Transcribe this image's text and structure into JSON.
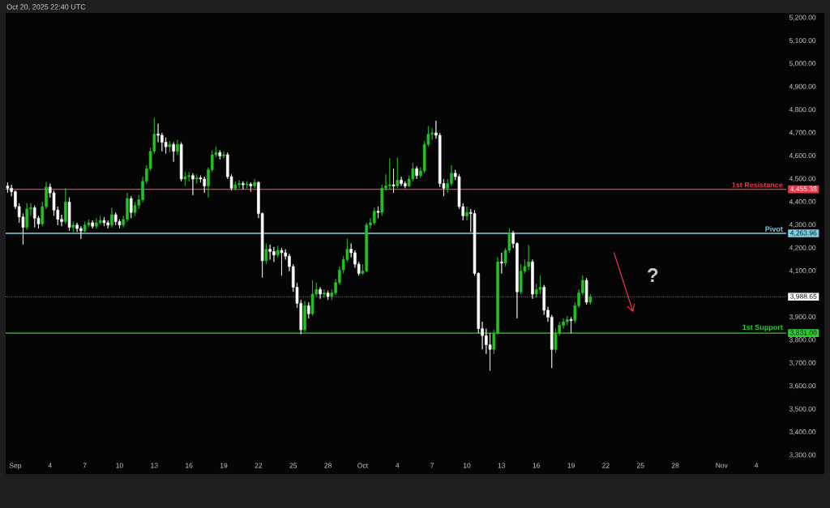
{
  "chart_data": {
    "type": "candlestick",
    "annotations": [
      "Oct 20, 2025 22:40 UTC",
      "?",
      {
        "text": "4,455.38",
        "x": "2025-11-06T14:00",
        "y": 4455.38
      },
      {
        "text": "4,263.96",
        "x": "2025-11-06T14:00",
        "y": 4263.96
      },
      {
        "text": "3,988.65",
        "x": "2025-11-06T14:00",
        "y": 3988.65
      },
      {
        "text": "3,831.00",
        "x": "2025-11-06T14:00",
        "y": 3831.0
      }
    ],
    "x": [
      "2025-08-31T08:00",
      "2025-08-31T16:00",
      "2025-09-01T00:00",
      "2025-09-01T08:00",
      "2025-09-01T16:00",
      "2025-09-02T00:00",
      "2025-09-02T08:00",
      "2025-09-02T16:00",
      "2025-09-03T00:00",
      "2025-09-03T08:00",
      "2025-09-03T16:00",
      "2025-09-04T00:00",
      "2025-09-04T08:00",
      "2025-09-04T16:00",
      "2025-09-05T00:00",
      "2025-09-05T08:00",
      "2025-09-05T16:00",
      "2025-09-06T00:00",
      "2025-09-06T08:00",
      "2025-09-06T16:00",
      "2025-09-07T00:00",
      "2025-09-07T08:00",
      "2025-09-07T16:00",
      "2025-09-08T00:00",
      "2025-09-08T08:00",
      "2025-09-08T16:00",
      "2025-09-09T00:00",
      "2025-09-09T08:00",
      "2025-09-09T16:00",
      "2025-09-10T00:00",
      "2025-09-10T08:00",
      "2025-09-10T16:00",
      "2025-09-11T00:00",
      "2025-09-11T08:00",
      "2025-09-11T16:00",
      "2025-09-12T00:00",
      "2025-09-12T08:00",
      "2025-09-12T16:00",
      "2025-09-13T00:00",
      "2025-09-13T08:00",
      "2025-09-13T16:00",
      "2025-09-14T00:00",
      "2025-09-14T08:00",
      "2025-09-14T16:00",
      "2025-09-15T00:00",
      "2025-09-15T08:00",
      "2025-09-15T16:00",
      "2025-09-16T00:00",
      "2025-09-16T08:00",
      "2025-09-16T16:00",
      "2025-09-17T00:00",
      "2025-09-17T08:00",
      "2025-09-17T16:00",
      "2025-09-18T00:00",
      "2025-09-18T08:00",
      "2025-09-18T16:00",
      "2025-09-19T00:00",
      "2025-09-19T08:00",
      "2025-09-19T16:00",
      "2025-09-20T00:00",
      "2025-09-20T08:00",
      "2025-09-20T16:00",
      "2025-09-21T00:00",
      "2025-09-21T08:00",
      "2025-09-21T16:00",
      "2025-09-22T00:00",
      "2025-09-22T08:00",
      "2025-09-22T16:00",
      "2025-09-23T00:00",
      "2025-09-23T08:00",
      "2025-09-23T16:00",
      "2025-09-24T00:00",
      "2025-09-24T08:00",
      "2025-09-24T16:00",
      "2025-09-25T00:00",
      "2025-09-25T08:00",
      "2025-09-25T16:00",
      "2025-09-26T00:00",
      "2025-09-26T08:00",
      "2025-09-26T16:00",
      "2025-09-27T00:00",
      "2025-09-27T08:00",
      "2025-09-27T16:00",
      "2025-09-28T00:00",
      "2025-09-28T08:00",
      "2025-09-28T16:00",
      "2025-09-29T00:00",
      "2025-09-29T08:00",
      "2025-09-29T16:00",
      "2025-09-30T00:00",
      "2025-09-30T08:00",
      "2025-09-30T16:00",
      "2025-10-01T00:00",
      "2025-10-01T08:00",
      "2025-10-01T16:00",
      "2025-10-02T00:00",
      "2025-10-02T08:00",
      "2025-10-02T16:00",
      "2025-10-03T00:00",
      "2025-10-03T08:00",
      "2025-10-03T16:00",
      "2025-10-04T00:00",
      "2025-10-04T08:00",
      "2025-10-04T16:00",
      "2025-10-05T00:00",
      "2025-10-05T08:00",
      "2025-10-05T16:00",
      "2025-10-06T00:00",
      "2025-10-06T08:00",
      "2025-10-06T16:00",
      "2025-10-07T00:00",
      "2025-10-07T08:00",
      "2025-10-07T16:00",
      "2025-10-08T00:00",
      "2025-10-08T08:00",
      "2025-10-08T16:00",
      "2025-10-09T00:00",
      "2025-10-09T08:00",
      "2025-10-09T16:00",
      "2025-10-10T00:00",
      "2025-10-10T08:00",
      "2025-10-10T16:00",
      "2025-10-11T00:00",
      "2025-10-11T08:00",
      "2025-10-11T16:00",
      "2025-10-12T00:00",
      "2025-10-12T08:00",
      "2025-10-12T16:00",
      "2025-10-13T00:00",
      "2025-10-13T08:00",
      "2025-10-13T16:00",
      "2025-10-14T00:00",
      "2025-10-14T08:00",
      "2025-10-14T16:00",
      "2025-10-15T00:00",
      "2025-10-15T08:00",
      "2025-10-15T16:00",
      "2025-10-16T00:00",
      "2025-10-16T08:00",
      "2025-10-16T16:00",
      "2025-10-17T00:00",
      "2025-10-17T08:00",
      "2025-10-17T16:00",
      "2025-10-18T00:00",
      "2025-10-18T08:00",
      "2025-10-18T16:00",
      "2025-10-19T00:00",
      "2025-10-19T08:00",
      "2025-10-19T16:00",
      "2025-10-20T00:00",
      "2025-10-20T08:00",
      "2025-10-20T16:00"
    ],
    "ohlc": [
      [
        4470,
        4485,
        4440,
        4460
      ],
      [
        4460,
        4475,
        4425,
        4445
      ],
      [
        4445,
        4450,
        4370,
        4380
      ],
      [
        4380,
        4395,
        4310,
        4335
      ],
      [
        4335,
        4350,
        4215,
        4290
      ],
      [
        4290,
        4395,
        4280,
        4370
      ],
      [
        4370,
        4395,
        4340,
        4375
      ],
      [
        4375,
        4385,
        4290,
        4330
      ],
      [
        4330,
        4340,
        4285,
        4305
      ],
      [
        4305,
        4400,
        4295,
        4380
      ],
      [
        4380,
        4487,
        4370,
        4465
      ],
      [
        4465,
        4480,
        4420,
        4440
      ],
      [
        4440,
        4450,
        4340,
        4365
      ],
      [
        4365,
        4380,
        4300,
        4325
      ],
      [
        4325,
        4345,
        4295,
        4315
      ],
      [
        4315,
        4460,
        4305,
        4400
      ],
      [
        4400,
        4420,
        4275,
        4290
      ],
      [
        4290,
        4315,
        4270,
        4300
      ],
      [
        4300,
        4310,
        4270,
        4285
      ],
      [
        4285,
        4295,
        4240,
        4275
      ],
      [
        4275,
        4315,
        4265,
        4300
      ],
      [
        4300,
        4325,
        4290,
        4310
      ],
      [
        4310,
        4320,
        4285,
        4295
      ],
      [
        4295,
        4330,
        4285,
        4310
      ],
      [
        4310,
        4340,
        4300,
        4320
      ],
      [
        4320,
        4335,
        4295,
        4310
      ],
      [
        4310,
        4320,
        4285,
        4300
      ],
      [
        4300,
        4375,
        4290,
        4345
      ],
      [
        4345,
        4355,
        4300,
        4315
      ],
      [
        4315,
        4325,
        4285,
        4300
      ],
      [
        4300,
        4340,
        4290,
        4325
      ],
      [
        4325,
        4440,
        4315,
        4415
      ],
      [
        4415,
        4425,
        4330,
        4355
      ],
      [
        4355,
        4400,
        4340,
        4385
      ],
      [
        4385,
        4430,
        4370,
        4410
      ],
      [
        4410,
        4510,
        4400,
        4490
      ],
      [
        4490,
        4560,
        4480,
        4545
      ],
      [
        4545,
        4635,
        4535,
        4620
      ],
      [
        4620,
        4765,
        4610,
        4695
      ],
      [
        4695,
        4740,
        4660,
        4690
      ],
      [
        4690,
        4700,
        4620,
        4660
      ],
      [
        4660,
        4680,
        4610,
        4640
      ],
      [
        4640,
        4665,
        4615,
        4650
      ],
      [
        4650,
        4660,
        4575,
        4620
      ],
      [
        4620,
        4670,
        4605,
        4650
      ],
      [
        4650,
        4660,
        4490,
        4500
      ],
      [
        4500,
        4530,
        4470,
        4510
      ],
      [
        4510,
        4530,
        4490,
        4515
      ],
      [
        4515,
        4525,
        4430,
        4500
      ],
      [
        4500,
        4520,
        4480,
        4505
      ],
      [
        4505,
        4515,
        4485,
        4500
      ],
      [
        4500,
        4510,
        4440,
        4470
      ],
      [
        4470,
        4550,
        4420,
        4540
      ],
      [
        4540,
        4625,
        4530,
        4605
      ],
      [
        4605,
        4640,
        4595,
        4615
      ],
      [
        4615,
        4625,
        4585,
        4600
      ],
      [
        4600,
        4620,
        4590,
        4605
      ],
      [
        4605,
        4615,
        4500,
        4510
      ],
      [
        4510,
        4520,
        4450,
        4460
      ],
      [
        4460,
        4490,
        4450,
        4475
      ],
      [
        4475,
        4495,
        4460,
        4480
      ],
      [
        4480,
        4490,
        4455,
        4475
      ],
      [
        4475,
        4490,
        4460,
        4478
      ],
      [
        4478,
        4485,
        4445,
        4470
      ],
      [
        4470,
        4500,
        4460,
        4485
      ],
      [
        4485,
        4490,
        4330,
        4350
      ],
      [
        4350,
        4355,
        4072,
        4145
      ],
      [
        4145,
        4220,
        4130,
        4195
      ],
      [
        4195,
        4215,
        4150,
        4185
      ],
      [
        4185,
        4205,
        4140,
        4170
      ],
      [
        4170,
        4210,
        4160,
        4190
      ],
      [
        4190,
        4200,
        4080,
        4180
      ],
      [
        4180,
        4195,
        4150,
        4165
      ],
      [
        4165,
        4175,
        4100,
        4120
      ],
      [
        4120,
        4130,
        4010,
        4030
      ],
      [
        4030,
        4050,
        3940,
        3960
      ],
      [
        3960,
        3975,
        3826,
        3845
      ],
      [
        3845,
        3970,
        3835,
        3950
      ],
      [
        3950,
        3965,
        3895,
        3915
      ],
      [
        3915,
        4060,
        3905,
        4000
      ],
      [
        4000,
        4050,
        3990,
        4020
      ],
      [
        4020,
        4030,
        3980,
        4000
      ],
      [
        4000,
        4020,
        3985,
        4005
      ],
      [
        4005,
        4015,
        3975,
        3990
      ],
      [
        3990,
        4020,
        3975,
        4005
      ],
      [
        4005,
        4065,
        3995,
        4050
      ],
      [
        4050,
        4120,
        4040,
        4105
      ],
      [
        4105,
        4165,
        4090,
        4150
      ],
      [
        4150,
        4241,
        4140,
        4195
      ],
      [
        4195,
        4220,
        4160,
        4180
      ],
      [
        4180,
        4190,
        4115,
        4130
      ],
      [
        4130,
        4140,
        4080,
        4090
      ],
      [
        4090,
        4130,
        4085,
        4100
      ],
      [
        4100,
        4310,
        4095,
        4300
      ],
      [
        4300,
        4330,
        4285,
        4310
      ],
      [
        4310,
        4375,
        4300,
        4360
      ],
      [
        4360,
        4380,
        4330,
        4355
      ],
      [
        4355,
        4475,
        4340,
        4460
      ],
      [
        4460,
        4520,
        4450,
        4470
      ],
      [
        4470,
        4590,
        4455,
        4475
      ],
      [
        4475,
        4545,
        4440,
        4470
      ],
      [
        4470,
        4592,
        4460,
        4495
      ],
      [
        4495,
        4510,
        4470,
        4480
      ],
      [
        4480,
        4490,
        4460,
        4470
      ],
      [
        4470,
        4515,
        4465,
        4500
      ],
      [
        4500,
        4570,
        4490,
        4545
      ],
      [
        4545,
        4555,
        4500,
        4515
      ],
      [
        4515,
        4550,
        4505,
        4535
      ],
      [
        4535,
        4665,
        4525,
        4650
      ],
      [
        4650,
        4730,
        4640,
        4695
      ],
      [
        4695,
        4720,
        4670,
        4700
      ],
      [
        4700,
        4753,
        4675,
        4690
      ],
      [
        4690,
        4700,
        4465,
        4480
      ],
      [
        4480,
        4500,
        4425,
        4460
      ],
      [
        4460,
        4500,
        4440,
        4480
      ],
      [
        4480,
        4560,
        4470,
        4525
      ],
      [
        4525,
        4540,
        4495,
        4510
      ],
      [
        4510,
        4520,
        4370,
        4380
      ],
      [
        4380,
        4395,
        4320,
        4340
      ],
      [
        4340,
        4380,
        4320,
        4355
      ],
      [
        4355,
        4370,
        4270,
        4350
      ],
      [
        4350,
        4365,
        4080,
        4090
      ],
      [
        4090,
        4095,
        3830,
        3850
      ],
      [
        3850,
        3880,
        3760,
        3820
      ],
      [
        3820,
        3850,
        3740,
        3780
      ],
      [
        3780,
        3830,
        3668,
        3760
      ],
      [
        3760,
        3845,
        3740,
        3830
      ],
      [
        3830,
        4160,
        3825,
        4140
      ],
      [
        4140,
        4180,
        4090,
        4135
      ],
      [
        4135,
        4200,
        4120,
        4190
      ],
      [
        4190,
        4286,
        4180,
        4265
      ],
      [
        4265,
        4275,
        4200,
        4220
      ],
      [
        4220,
        4225,
        3895,
        4010
      ],
      [
        4010,
        4130,
        4000,
        4100
      ],
      [
        4100,
        4150,
        4090,
        4120
      ],
      [
        4120,
        4213,
        4105,
        4140
      ],
      [
        4140,
        4150,
        3980,
        4000
      ],
      [
        4000,
        4045,
        3985,
        4020
      ],
      [
        4020,
        4080,
        4000,
        4030
      ],
      [
        4030,
        4040,
        3910,
        3930
      ],
      [
        3930,
        3945,
        3880,
        3900
      ],
      [
        3900,
        3910,
        3679,
        3760
      ],
      [
        3760,
        3850,
        3745,
        3830
      ],
      [
        3830,
        3880,
        3820,
        3865
      ],
      [
        3865,
        3895,
        3850,
        3880
      ],
      [
        3880,
        3905,
        3865,
        3890
      ],
      [
        3890,
        3900,
        3830,
        3885
      ],
      [
        3885,
        3965,
        3875,
        3950
      ],
      [
        3950,
        4020,
        3940,
        4005
      ],
      [
        4005,
        4082,
        3995,
        4060
      ],
      [
        4060,
        4070,
        3955,
        3965
      ],
      [
        3965,
        4000,
        3955,
        3988.65
      ]
    ],
    "colors": [
      "#ffffff",
      "#ffffff",
      "#ffffff",
      "#ffffff",
      "#ffffff",
      "#22c322",
      "#22c322",
      "#ffffff",
      "#ffffff",
      "#22c322",
      "#22c322",
      "#ffffff",
      "#ffffff",
      "#ffffff",
      "#ffffff",
      "#22c322",
      "#ffffff",
      "#22c322",
      "#ffffff",
      "#ffffff",
      "#22c322",
      "#22c322",
      "#ffffff",
      "#22c322",
      "#22c322",
      "#ffffff",
      "#ffffff",
      "#22c322",
      "#ffffff",
      "#ffffff",
      "#22c322",
      "#22c322",
      "#ffffff",
      "#22c322",
      "#22c322",
      "#22c322",
      "#22c322",
      "#22c322",
      "#22c322",
      "#ffffff",
      "#ffffff",
      "#ffffff",
      "#22c322",
      "#ffffff",
      "#22c322",
      "#ffffff",
      "#22c322",
      "#22c322",
      "#ffffff",
      "#22c322",
      "#ffffff",
      "#ffffff",
      "#22c322",
      "#22c322",
      "#22c322",
      "#ffffff",
      "#22c322",
      "#ffffff",
      "#ffffff",
      "#22c322",
      "#22c322",
      "#ffffff",
      "#22c322",
      "#ffffff",
      "#22c322",
      "#ffffff",
      "#ffffff",
      "#22c322",
      "#ffffff",
      "#ffffff",
      "#22c322",
      "#ffffff",
      "#ffffff",
      "#ffffff",
      "#ffffff",
      "#ffffff",
      "#ffffff",
      "#22c322",
      "#ffffff",
      "#22c322",
      "#22c322",
      "#ffffff",
      "#22c322",
      "#ffffff",
      "#22c322",
      "#22c322",
      "#22c322",
      "#22c322",
      "#22c322",
      "#ffffff",
      "#ffffff",
      "#ffffff",
      "#22c322",
      "#22c322",
      "#22c322",
      "#22c322",
      "#ffffff",
      "#22c322",
      "#22c322",
      "#22c322",
      "#ffffff",
      "#22c322",
      "#ffffff",
      "#ffffff",
      "#22c322",
      "#22c322",
      "#ffffff",
      "#22c322",
      "#22c322",
      "#22c322",
      "#22c322",
      "#ffffff",
      "#ffffff",
      "#ffffff",
      "#22c322",
      "#22c322",
      "#ffffff",
      "#ffffff",
      "#ffffff",
      "#22c322",
      "#ffffff",
      "#ffffff",
      "#ffffff",
      "#ffffff",
      "#ffffff",
      "#ffffff",
      "#22c322",
      "#22c322",
      "#ffffff",
      "#22c322",
      "#22c322",
      "#ffffff",
      "#ffffff",
      "#22c322",
      "#22c322",
      "#22c322",
      "#ffffff",
      "#22c322",
      "#22c322",
      "#ffffff",
      "#ffffff",
      "#ffffff",
      "#22c322",
      "#22c322",
      "#22c322",
      "#22c322",
      "#ffffff",
      "#22c322",
      "#22c322",
      "#22c322",
      "#ffffff",
      "#22c322"
    ],
    "series": [
      {
        "type": "line",
        "x": [
          "2025-10-22T17:00",
          "2025-10-24T08:00"
        ],
        "values": [
          4180,
          3925
        ],
        "color": "#f23645"
      }
    ],
    "xlim": [
      "2025-08-31T04:00",
      "2025-11-06T14:00"
    ],
    "ylim": [
      3300,
      5200
    ],
    "xticks": [
      {
        "value": "2025-09-01",
        "label": "Sep"
      },
      {
        "value": "2025-09-04",
        "label": "4"
      },
      {
        "value": "2025-09-07",
        "label": "7"
      },
      {
        "value": "2025-09-10",
        "label": "10"
      },
      {
        "value": "2025-09-13",
        "label": "13"
      },
      {
        "value": "2025-09-16",
        "label": "16"
      },
      {
        "value": "2025-09-19",
        "label": "19"
      },
      {
        "value": "2025-09-22",
        "label": "22"
      },
      {
        "value": "2025-09-25",
        "label": "25"
      },
      {
        "value": "2025-09-28",
        "label": "28"
      },
      {
        "value": "2025-10-01",
        "label": "Oct"
      },
      {
        "value": "2025-10-04",
        "label": "4"
      },
      {
        "value": "2025-10-07",
        "label": "7"
      },
      {
        "value": "2025-10-10",
        "label": "10"
      },
      {
        "value": "2025-10-13",
        "label": "13"
      },
      {
        "value": "2025-10-16",
        "label": "16"
      },
      {
        "value": "2025-10-19",
        "label": "19"
      },
      {
        "value": "2025-10-22",
        "label": "22"
      },
      {
        "value": "2025-10-25",
        "label": "25"
      },
      {
        "value": "2025-10-28",
        "label": "28"
      },
      {
        "value": "2025-11-01",
        "label": "Nov"
      },
      {
        "value": "2025-11-04",
        "label": "4"
      }
    ],
    "yticks": [
      {
        "value": 3300,
        "label": "3,300.00"
      },
      {
        "value": 3400,
        "label": "3,400.00"
      },
      {
        "value": 3500,
        "label": "3,500.00"
      },
      {
        "value": 3600,
        "label": "3,600.00"
      },
      {
        "value": 3700,
        "label": "3,700.00"
      },
      {
        "value": 3800,
        "label": "3,800.00"
      },
      {
        "value": 3900,
        "label": "3,900.00"
      },
      {
        "value": 4000,
        "label": null
      },
      {
        "value": 4100,
        "label": "4,100.00"
      },
      {
        "value": 4200,
        "label": "4,200.00"
      },
      {
        "value": 4300,
        "label": "4,300.00"
      },
      {
        "value": 4400,
        "label": "4,400.00"
      },
      {
        "value": 4500,
        "label": "4,500.00"
      },
      {
        "value": 4600,
        "label": "4,600.00"
      },
      {
        "value": 4700,
        "label": "4,700.00"
      },
      {
        "value": 4800,
        "label": "4,800.00"
      },
      {
        "value": 4900,
        "label": "4,900.00"
      },
      {
        "value": 5000,
        "label": "5,000.00"
      },
      {
        "value": 5100,
        "label": "5,100.00"
      },
      {
        "value": 5200,
        "label": "5,200.00"
      }
    ],
    "ref_lines": [
      {
        "axis": "y",
        "value": 4455.38,
        "label": "1st Resistance",
        "color": "#f23645"
      },
      {
        "axis": "y",
        "value": 4263.96,
        "label": "Pivot",
        "color": "#7fd1e3"
      },
      {
        "axis": "y",
        "value": 3831.0,
        "label": "1st Support",
        "color": "#2ecc2e"
      },
      {
        "axis": "y",
        "value": 3988.65,
        "color": "#ffffff",
        "line_style": "dotted"
      }
    ]
  }
}
